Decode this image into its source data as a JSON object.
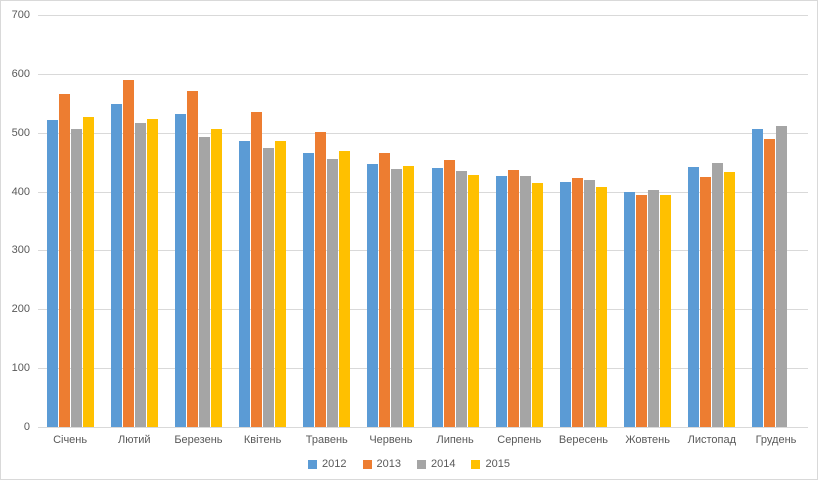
{
  "chart": {
    "background_color": "#FFFFFF",
    "border_color": "#D9D9D9",
    "gridline_color": "#D9D9D9",
    "axis_text_color": "#595959"
  },
  "chart_data": {
    "type": "bar",
    "title": "",
    "xlabel": "",
    "ylabel": "",
    "categories": [
      "Січень",
      "Лютий",
      "Березень",
      "Квітень",
      "Травень",
      "Червень",
      "Липень",
      "Серпень",
      "Вересень",
      "Жовтень",
      "Листопад",
      "Грудень"
    ],
    "series": [
      {
        "name": "2012",
        "color": "#5B9BD5",
        "values": [
          522,
          548,
          532,
          486,
          466,
          447,
          440,
          427,
          417,
          400,
          441,
          506
        ]
      },
      {
        "name": "2013",
        "color": "#ED7D31",
        "values": [
          565,
          590,
          571,
          536,
          502,
          466,
          453,
          436,
          423,
          394,
          424,
          489
        ]
      },
      {
        "name": "2014",
        "color": "#A5A5A5",
        "values": [
          506,
          517,
          493,
          474,
          455,
          438,
          435,
          427,
          419,
          403,
          449,
          511
        ]
      },
      {
        "name": "2015",
        "color": "#FFC000",
        "values": [
          526,
          524,
          507,
          486,
          469,
          443,
          428,
          415,
          408,
          394,
          433,
          null
        ]
      }
    ],
    "ylim": [
      0,
      700
    ],
    "yticks": [
      0,
      100,
      200,
      300,
      400,
      500,
      600,
      700
    ],
    "grid": true,
    "legend_position": "bottom",
    "legend_entries": [
      "2012",
      "2013",
      "2014",
      "2015"
    ]
  }
}
